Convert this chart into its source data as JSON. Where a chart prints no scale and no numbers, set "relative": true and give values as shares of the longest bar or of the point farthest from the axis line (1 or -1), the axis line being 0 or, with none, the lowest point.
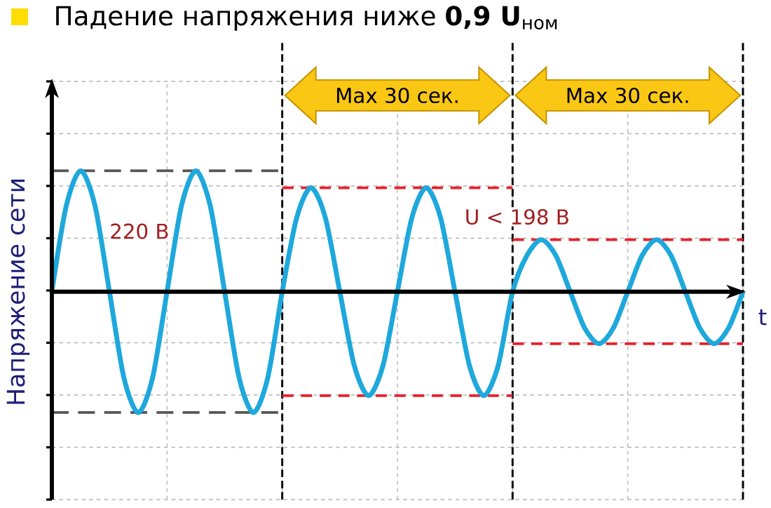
{
  "chart_data": {
    "type": "line",
    "title": "Падение напряжения ниже **0,9 U**$_{ном}$",
    "xlabel": "t",
    "ylabel": "Напряжение сети",
    "relative": true,
    "grid": true,
    "categories": [
      null,
      null,
      null,
      null,
      null,
      null,
      null,
      null,
      null,
      null,
      null,
      null,
      null,
      null,
      null,
      null,
      null,
      null,
      null,
      null,
      null,
      null,
      null,
      null,
      null,
      null,
      null,
      null,
      null,
      null,
      null,
      null,
      null,
      null,
      null,
      null,
      null,
      null,
      null,
      null,
      null,
      null,
      null,
      null,
      null,
      null,
      null,
      null,
      null
    ],
    "series": [
      {
        "color": "#1ea8dc",
        "values": [
          0,
          0.71,
          1,
          0.71,
          0,
          -0.71,
          -1,
          -0.71,
          0,
          0.71,
          1,
          0.71,
          0,
          -0.71,
          -1,
          -0.71,
          0,
          0.61,
          0.86,
          0.61,
          0,
          -0.61,
          -0.86,
          -0.61,
          0,
          0.61,
          0.86,
          0.61,
          0,
          -0.61,
          -0.86,
          -0.61,
          0,
          0.3,
          0.43,
          0.3,
          0,
          -0.3,
          -0.43,
          -0.3,
          0,
          0.3,
          0.43,
          0.3,
          0,
          -0.3,
          -0.43,
          -0.3,
          0
        ]
      },
      {
        "name": "220 В",
        "color": "#555555",
        "line_style": "dashed",
        "values": [
          1,
          1,
          1,
          1,
          1,
          1,
          1,
          1,
          1,
          1,
          1,
          1,
          1,
          1,
          1,
          1,
          1,
          null,
          null,
          null,
          null,
          null,
          null,
          null,
          null,
          null,
          null,
          null,
          null,
          null,
          null,
          null,
          null,
          null,
          null,
          null,
          null,
          null,
          null,
          null,
          null,
          null,
          null,
          null,
          null,
          null,
          null,
          null,
          null
        ]
      },
      {
        "color": "#555555",
        "line_style": "dashed",
        "values": [
          -1,
          -1,
          -1,
          -1,
          -1,
          -1,
          -1,
          -1,
          -1,
          -1,
          -1,
          -1,
          -1,
          -1,
          -1,
          -1,
          -1,
          null,
          null,
          null,
          null,
          null,
          null,
          null,
          null,
          null,
          null,
          null,
          null,
          null,
          null,
          null,
          null,
          null,
          null,
          null,
          null,
          null,
          null,
          null,
          null,
          null,
          null,
          null,
          null,
          null,
          null,
          null,
          null
        ]
      },
      {
        "name": "U < 198 В",
        "color": "#e8202a",
        "line_style": "dashed",
        "values": [
          null,
          null,
          null,
          null,
          null,
          null,
          null,
          null,
          null,
          null,
          null,
          null,
          null,
          null,
          null,
          null,
          0.86,
          0.86,
          0.86,
          0.86,
          0.86,
          0.86,
          0.86,
          0.86,
          0.86,
          0.86,
          0.86,
          0.86,
          0.86,
          0.86,
          0.86,
          0.86,
          0.86,
          null,
          null,
          null,
          null,
          null,
          null,
          null,
          null,
          null,
          null,
          null,
          null,
          null,
          null,
          null,
          null
        ]
      },
      {
        "color": "#e8202a",
        "line_style": "dashed",
        "values": [
          null,
          null,
          null,
          null,
          null,
          null,
          null,
          null,
          null,
          null,
          null,
          null,
          null,
          null,
          null,
          null,
          -0.86,
          -0.86,
          -0.86,
          -0.86,
          -0.86,
          -0.86,
          -0.86,
          -0.86,
          -0.86,
          -0.86,
          -0.86,
          -0.86,
          -0.86,
          -0.86,
          -0.86,
          -0.86,
          -0.86,
          null,
          null,
          null,
          null,
          null,
          null,
          null,
          null,
          null,
          null,
          null,
          null,
          null,
          null,
          null,
          null
        ]
      },
      {
        "color": "#e8202a",
        "line_style": "dashed",
        "values": [
          null,
          null,
          null,
          null,
          null,
          null,
          null,
          null,
          null,
          null,
          null,
          null,
          null,
          null,
          null,
          null,
          null,
          null,
          null,
          null,
          null,
          null,
          null,
          null,
          null,
          null,
          null,
          null,
          null,
          null,
          null,
          null,
          0.43,
          0.43,
          0.43,
          0.43,
          0.43,
          0.43,
          0.43,
          0.43,
          0.43,
          0.43,
          0.43,
          0.43,
          0.43,
          0.43,
          0.43,
          0.43,
          0.43
        ]
      },
      {
        "color": "#e8202a",
        "line_style": "dashed",
        "values": [
          null,
          null,
          null,
          null,
          null,
          null,
          null,
          null,
          null,
          null,
          null,
          null,
          null,
          null,
          null,
          null,
          null,
          null,
          null,
          null,
          null,
          null,
          null,
          null,
          null,
          null,
          null,
          null,
          null,
          null,
          null,
          null,
          -0.43,
          -0.43,
          -0.43,
          -0.43,
          -0.43,
          -0.43,
          -0.43,
          -0.43,
          -0.43,
          -0.43,
          -0.43,
          -0.43,
          -0.43,
          -0.43,
          -0.43,
          -0.43,
          -0.43
        ]
      }
    ],
    "annotations": [
      "Max 30 сек.",
      "Max 30 сек."
    ]
  }
}
